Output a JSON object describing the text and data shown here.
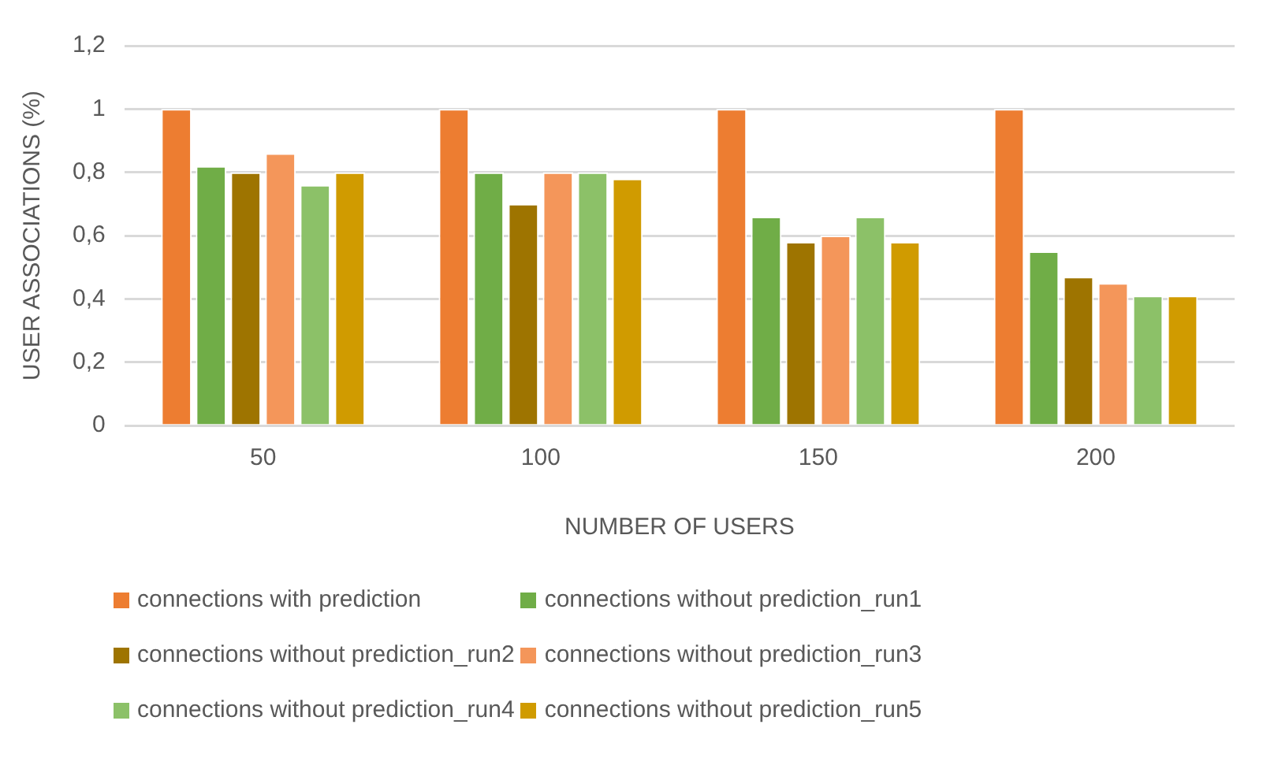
{
  "chart_data": {
    "type": "bar",
    "xlabel": "NUMBER OF USERS",
    "ylabel": "USER ASSOCIATIONS (%)",
    "categories": [
      "50",
      "100",
      "150",
      "200"
    ],
    "series": [
      {
        "name": "connections with prediction",
        "color": "#ed7d31",
        "values": [
          1,
          1,
          1,
          1
        ]
      },
      {
        "name": "connections without prediction_run1",
        "color": "#70ad47",
        "values": [
          0.82,
          0.8,
          0.66,
          0.55
        ]
      },
      {
        "name": "connections without prediction_run2",
        "color": "#9e7400",
        "values": [
          0.8,
          0.7,
          0.58,
          0.47
        ]
      },
      {
        "name": "connections without prediction_run3",
        "color": "#f4965a",
        "values": [
          0.86,
          0.8,
          0.6,
          0.45
        ]
      },
      {
        "name": "connections without prediction_run4",
        "color": "#8cc168",
        "values": [
          0.76,
          0.8,
          0.66,
          0.41
        ]
      },
      {
        "name": "connections without prediction_run5",
        "color": "#d09b00",
        "values": [
          0.8,
          0.78,
          0.58,
          0.41
        ]
      }
    ],
    "ylim": [
      0,
      1.2
    ],
    "yticks": [
      0,
      {
        "value": 0.2,
        "label": "0,2"
      },
      {
        "value": 0.4,
        "label": "0,4"
      },
      {
        "value": 0.6,
        "label": "0,6"
      },
      {
        "value": 0.8,
        "label": "0,8"
      },
      1,
      {
        "value": 1.2,
        "label": "1,2"
      }
    ],
    "grid": "y",
    "legend": "bottom"
  }
}
